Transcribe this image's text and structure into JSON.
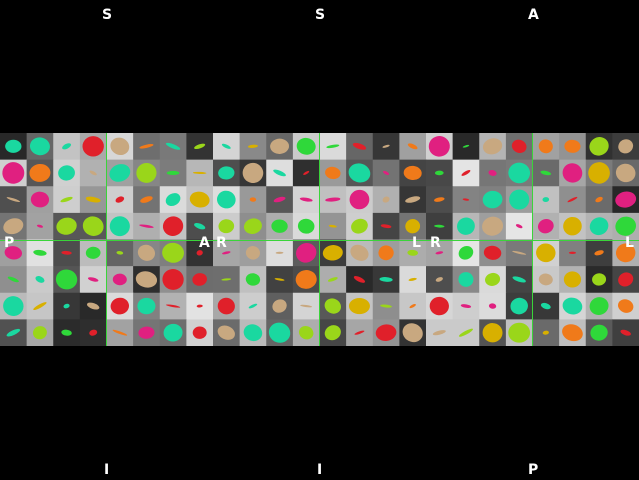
{
  "orientation_labels": {
    "top": [
      "S",
      "S",
      "A"
    ],
    "bottom": [
      "I",
      "I",
      "P"
    ],
    "side": [
      "P",
      "A",
      "R",
      "L",
      "R",
      "L"
    ]
  },
  "colors": {
    "crosshair": "#3ad43a",
    "background": "#000000",
    "label": "#ffffff",
    "glyph_palette": [
      "#e0202a",
      "#f07a1a",
      "#d8b000",
      "#9ad61a",
      "#2fd83a",
      "#1ad8a0",
      "#e02080",
      "#c8a880"
    ]
  },
  "panels": [
    {
      "name": "sagittal-left",
      "top_label": "S",
      "bottom_label": "I",
      "left_label": "P",
      "right_label": "A"
    },
    {
      "name": "sagittal-right",
      "top_label": "S",
      "bottom_label": "I",
      "left_label": "R",
      "right_label": "L"
    },
    {
      "name": "axial",
      "top_label": "A",
      "bottom_label": "P",
      "left_label": "R",
      "right_label": "L"
    }
  ]
}
